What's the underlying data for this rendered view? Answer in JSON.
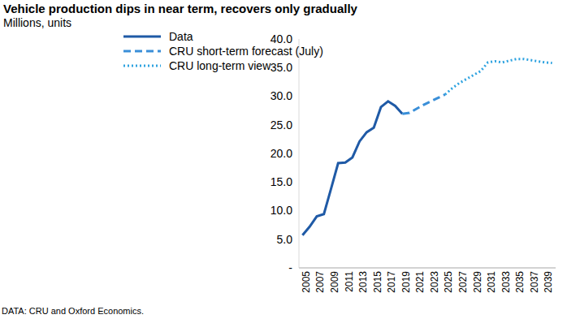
{
  "chart_data": {
    "type": "line",
    "title": "Vehicle production dips in near term, recovers only gradually",
    "subtitle": "Millions, units",
    "source": "DATA: CRU and Oxford Economics.",
    "x": [
      2005,
      2006,
      2007,
      2008,
      2009,
      2010,
      2011,
      2012,
      2013,
      2014,
      2015,
      2016,
      2017,
      2018,
      2019,
      2020,
      2021,
      2022,
      2023,
      2024,
      2025,
      2026,
      2027,
      2028,
      2029,
      2030,
      2031,
      2032,
      2033,
      2034,
      2035,
      2036,
      2037,
      2038,
      2039,
      2040
    ],
    "xlim": [
      2004.5,
      2040.5
    ],
    "xticks": [
      2005,
      2007,
      2009,
      2011,
      2013,
      2015,
      2017,
      2019,
      2021,
      2023,
      2025,
      2027,
      2029,
      2031,
      2033,
      2035,
      2037,
      2039
    ],
    "ylim": [
      0,
      40
    ],
    "yticks": [
      {
        "value": 0,
        "label": "-"
      },
      {
        "value": 5,
        "label": "5.0"
      },
      {
        "value": 10,
        "label": "10.0"
      },
      {
        "value": 15,
        "label": "15.0"
      },
      {
        "value": 20,
        "label": "20.0"
      },
      {
        "value": 25,
        "label": "25.0"
      },
      {
        "value": 30,
        "label": "30.0"
      },
      {
        "value": 35,
        "label": "35.0"
      },
      {
        "value": 40,
        "label": "40.0"
      }
    ],
    "grid": false,
    "series": [
      {
        "name": "Data",
        "color": "#1F5AA6",
        "line_style": "solid",
        "values": [
          5.7,
          7.2,
          9.0,
          9.4,
          13.8,
          18.3,
          18.4,
          19.3,
          22.1,
          23.7,
          24.5,
          28.1,
          29.1,
          28.3,
          26.9,
          null,
          null,
          null,
          null,
          null,
          null,
          null,
          null,
          null,
          null,
          null,
          null,
          null,
          null,
          null,
          null,
          null,
          null,
          null,
          null,
          null
        ]
      },
      {
        "name": "CRU short-term forecast (July)",
        "color": "#3A8FD8",
        "line_style": "dashed",
        "values": [
          null,
          null,
          null,
          null,
          null,
          null,
          null,
          null,
          null,
          null,
          null,
          null,
          null,
          null,
          26.9,
          27.1,
          27.8,
          28.5,
          29.1,
          29.7,
          30.3,
          null,
          null,
          null,
          null,
          null,
          null,
          null,
          null,
          null,
          null,
          null,
          null,
          null,
          null,
          null
        ]
      },
      {
        "name": "CRU long-term view",
        "color": "#2FA3E0",
        "line_style": "dotted",
        "values": [
          null,
          null,
          null,
          null,
          null,
          null,
          null,
          null,
          null,
          null,
          null,
          null,
          null,
          null,
          null,
          null,
          null,
          null,
          null,
          null,
          30.3,
          31.4,
          32.3,
          33.0,
          33.7,
          34.4,
          35.9,
          36.1,
          35.9,
          36.2,
          36.5,
          36.5,
          36.3,
          36.1,
          35.9,
          35.8
        ]
      }
    ]
  }
}
